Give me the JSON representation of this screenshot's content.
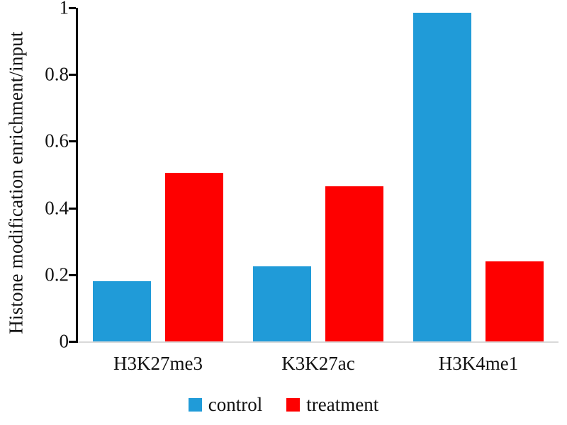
{
  "chart_data": {
    "type": "bar",
    "title": "",
    "xlabel": "",
    "ylabel": "Histone modification enrichment/input",
    "categories": [
      "H3K27me3",
      "K3K27ac",
      "H3K4me1"
    ],
    "series": [
      {
        "name": "control",
        "color": "#209bd8",
        "values": [
          0.18,
          0.225,
          0.985
        ]
      },
      {
        "name": "treatment",
        "color": "#fe0000",
        "values": [
          0.505,
          0.465,
          0.24
        ]
      }
    ],
    "ylim": [
      0,
      1
    ],
    "yticks": [
      0,
      0.2,
      0.4,
      0.6,
      0.8,
      1
    ],
    "ytick_labels": [
      "0",
      "0.2",
      "0.4",
      "0.6",
      "0.8",
      "1"
    ],
    "grid": false,
    "legend_position": "bottom",
    "axis_color": "#000000",
    "baseline_color": "#d9d9d9"
  }
}
